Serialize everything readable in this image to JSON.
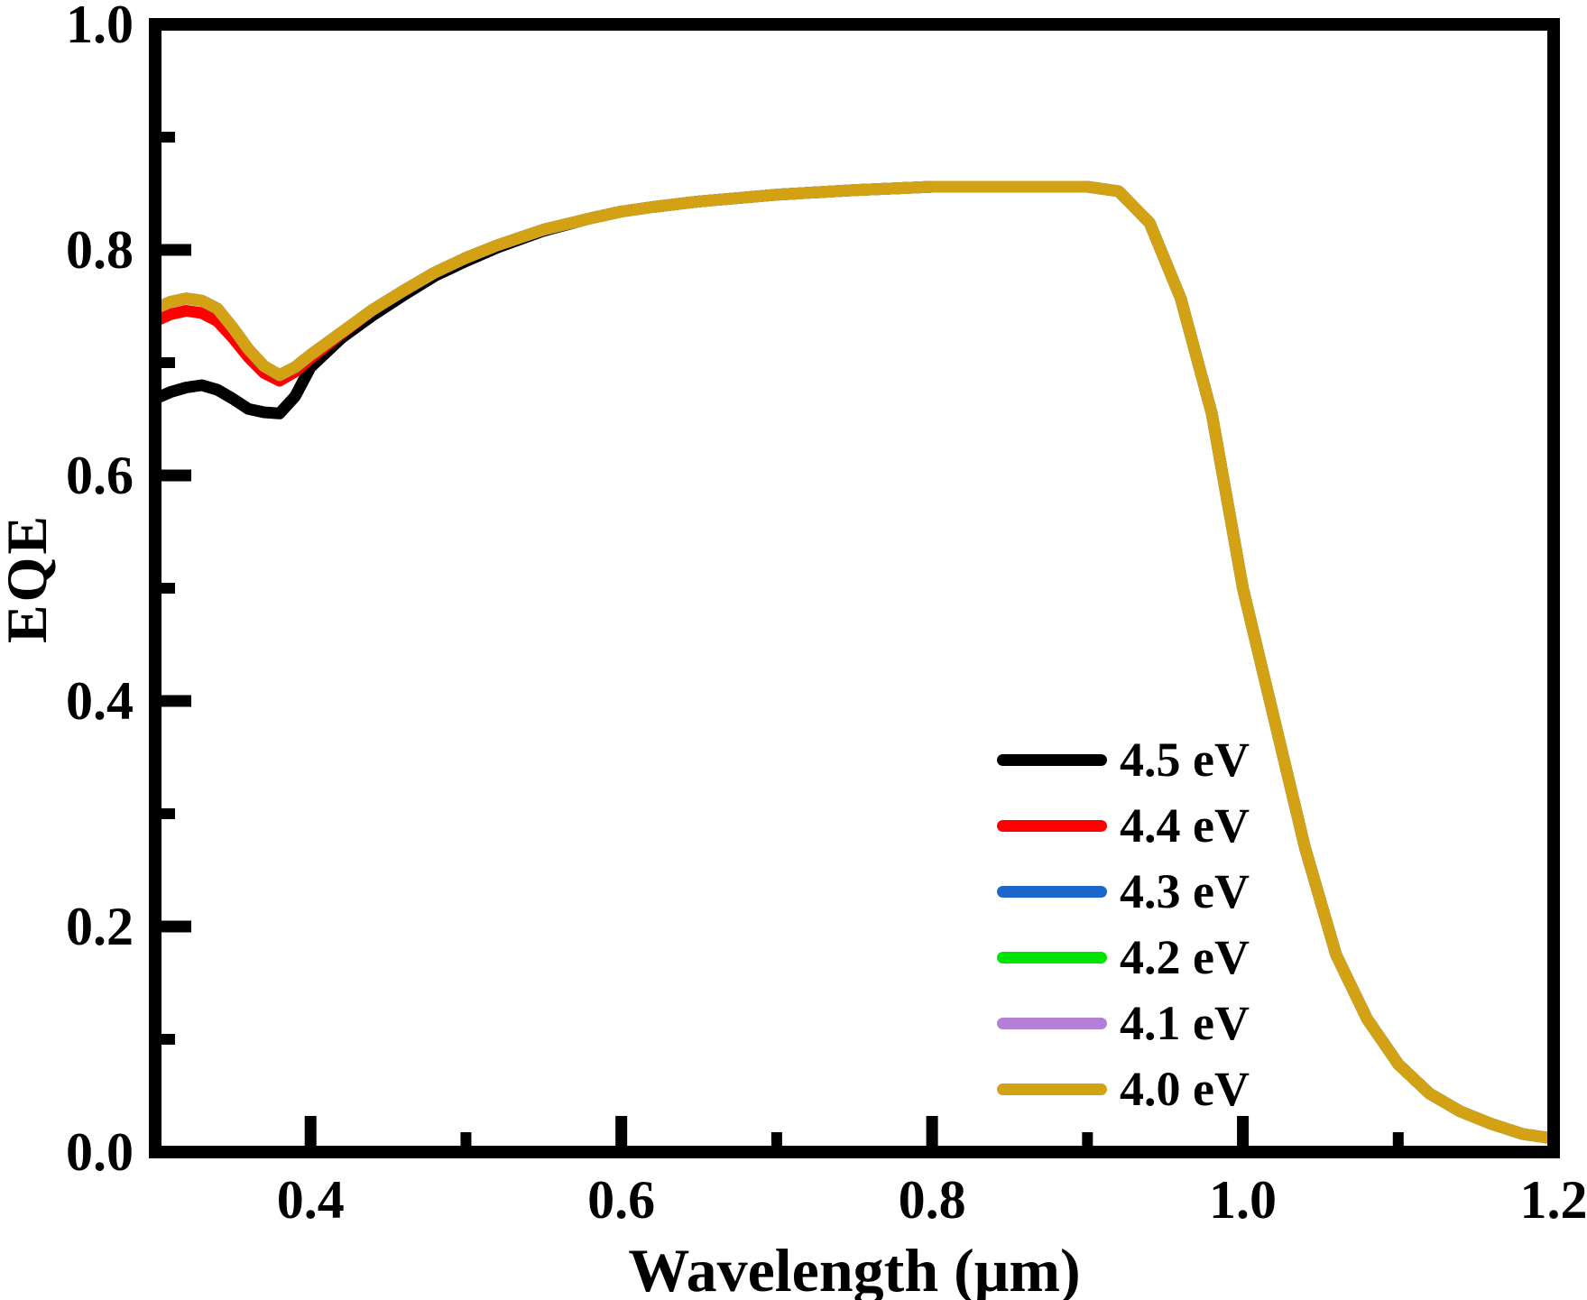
{
  "chart_data": {
    "type": "line",
    "title": "",
    "xlabel": "Wavelength (μm)",
    "ylabel": "EQE",
    "xlim": [
      0.3,
      1.2
    ],
    "ylim": [
      0.0,
      1.0
    ],
    "grid": false,
    "legend_position": "lower-right-inside",
    "x_major_ticks": [
      0.4,
      0.6,
      0.8,
      1.0,
      1.2
    ],
    "x_tick_labels": [
      "0.4",
      "0.6",
      "0.8",
      "1.0",
      "1.2"
    ],
    "x_minor_ticks": [
      0.5,
      0.7,
      0.9,
      1.1
    ],
    "y_major_ticks": [
      0.0,
      0.2,
      0.4,
      0.6,
      0.8,
      1.0
    ],
    "y_tick_labels": [
      "0.0",
      "0.2",
      "0.4",
      "0.6",
      "0.8",
      "1.0"
    ],
    "y_minor_ticks": [
      0.1,
      0.3,
      0.5,
      0.7,
      0.9
    ],
    "x": [
      0.3,
      0.31,
      0.32,
      0.33,
      0.34,
      0.35,
      0.36,
      0.37,
      0.38,
      0.39,
      0.4,
      0.42,
      0.44,
      0.46,
      0.48,
      0.5,
      0.52,
      0.55,
      0.58,
      0.6,
      0.62,
      0.65,
      0.7,
      0.75,
      0.8,
      0.85,
      0.9,
      0.92,
      0.94,
      0.96,
      0.98,
      1.0,
      1.02,
      1.04,
      1.06,
      1.08,
      1.1,
      1.12,
      1.14,
      1.16,
      1.18,
      1.2
    ],
    "series": [
      {
        "name": "4.5 eV",
        "color": "#000000",
        "values": [
          0.668,
          0.674,
          0.678,
          0.68,
          0.676,
          0.668,
          0.659,
          0.656,
          0.655,
          0.67,
          0.696,
          0.722,
          0.742,
          0.76,
          0.777,
          0.79,
          0.802,
          0.817,
          0.828,
          0.834,
          0.838,
          0.843,
          0.849,
          0.853,
          0.856,
          0.856,
          0.856,
          0.852,
          0.824,
          0.757,
          0.655,
          0.5,
          0.385,
          0.27,
          0.175,
          0.118,
          0.078,
          0.052,
          0.036,
          0.025,
          0.016,
          0.012
        ]
      },
      {
        "name": "4.4 eV",
        "color": "#FF0000",
        "values": [
          0.737,
          0.743,
          0.746,
          0.744,
          0.737,
          0.722,
          0.705,
          0.691,
          0.684,
          0.692,
          0.704,
          0.726,
          0.747,
          0.764,
          0.78,
          0.793,
          0.804,
          0.818,
          0.828,
          0.834,
          0.838,
          0.843,
          0.849,
          0.853,
          0.856,
          0.856,
          0.856,
          0.852,
          0.824,
          0.757,
          0.655,
          0.5,
          0.385,
          0.27,
          0.175,
          0.118,
          0.078,
          0.052,
          0.036,
          0.025,
          0.016,
          0.012
        ]
      },
      {
        "name": "4.3 eV",
        "color": "#1F66CC",
        "values": [
          0.748,
          0.754,
          0.757,
          0.755,
          0.748,
          0.731,
          0.712,
          0.697,
          0.689,
          0.696,
          0.707,
          0.727,
          0.747,
          0.764,
          0.78,
          0.793,
          0.804,
          0.818,
          0.828,
          0.834,
          0.838,
          0.843,
          0.849,
          0.853,
          0.856,
          0.856,
          0.856,
          0.852,
          0.824,
          0.757,
          0.655,
          0.5,
          0.385,
          0.27,
          0.175,
          0.118,
          0.078,
          0.052,
          0.036,
          0.025,
          0.016,
          0.012
        ]
      },
      {
        "name": "4.2 eV",
        "color": "#00E400",
        "values": [
          0.748,
          0.754,
          0.757,
          0.755,
          0.748,
          0.731,
          0.712,
          0.697,
          0.689,
          0.696,
          0.707,
          0.727,
          0.747,
          0.764,
          0.78,
          0.793,
          0.804,
          0.818,
          0.828,
          0.834,
          0.838,
          0.843,
          0.849,
          0.853,
          0.856,
          0.856,
          0.856,
          0.852,
          0.824,
          0.757,
          0.655,
          0.5,
          0.385,
          0.27,
          0.175,
          0.118,
          0.078,
          0.052,
          0.036,
          0.025,
          0.016,
          0.012
        ]
      },
      {
        "name": "4.1 eV",
        "color": "#B37FD7",
        "values": [
          0.748,
          0.754,
          0.757,
          0.755,
          0.748,
          0.731,
          0.712,
          0.697,
          0.689,
          0.696,
          0.707,
          0.727,
          0.747,
          0.764,
          0.78,
          0.793,
          0.804,
          0.818,
          0.828,
          0.834,
          0.838,
          0.843,
          0.849,
          0.853,
          0.856,
          0.856,
          0.856,
          0.852,
          0.824,
          0.757,
          0.655,
          0.5,
          0.385,
          0.27,
          0.175,
          0.118,
          0.078,
          0.052,
          0.036,
          0.025,
          0.016,
          0.012
        ]
      },
      {
        "name": "4.0 eV",
        "color": "#D2A214",
        "values": [
          0.748,
          0.754,
          0.757,
          0.755,
          0.748,
          0.731,
          0.712,
          0.697,
          0.689,
          0.696,
          0.707,
          0.727,
          0.747,
          0.764,
          0.78,
          0.793,
          0.804,
          0.818,
          0.828,
          0.834,
          0.838,
          0.843,
          0.849,
          0.853,
          0.856,
          0.856,
          0.856,
          0.852,
          0.824,
          0.757,
          0.655,
          0.5,
          0.385,
          0.27,
          0.175,
          0.118,
          0.078,
          0.052,
          0.036,
          0.025,
          0.016,
          0.012
        ]
      }
    ]
  },
  "legend": {
    "entries": [
      {
        "label": "4.5 eV",
        "color": "#000000"
      },
      {
        "label": "4.4 eV",
        "color": "#FF0000"
      },
      {
        "label": "4.3 eV",
        "color": "#1F66CC"
      },
      {
        "label": "4.2 eV",
        "color": "#00E400"
      },
      {
        "label": "4.1 eV",
        "color": "#B37FD7"
      },
      {
        "label": "4.0 eV",
        "color": "#D2A214"
      }
    ]
  },
  "styles": {
    "background": "#ffffff",
    "frame_color": "#000000",
    "text_color": "#000000"
  }
}
